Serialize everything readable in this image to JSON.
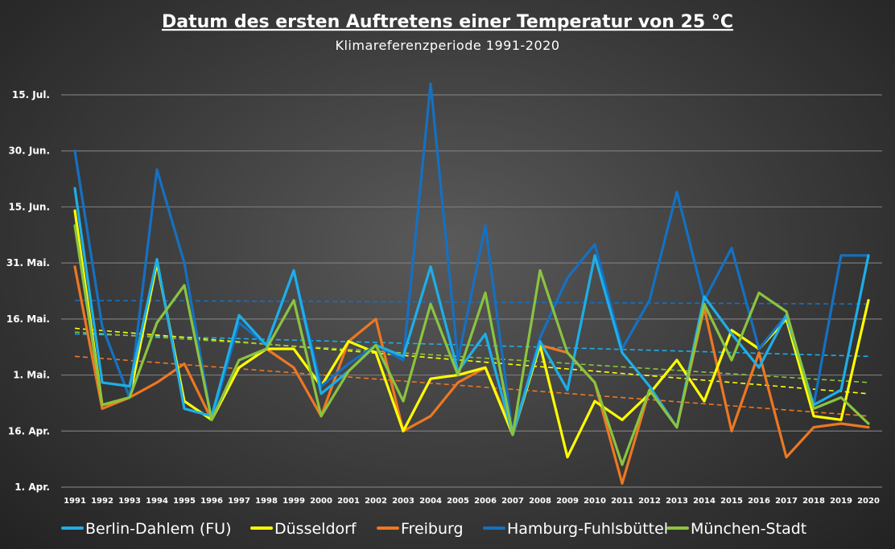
{
  "chart_data": {
    "type": "line",
    "title": "Datum des ersten Auftretens einer Temperatur von 25 °C",
    "subtitle": "Klimareferenzperiode 1991-2020",
    "x": [
      1991,
      1992,
      1993,
      1994,
      1995,
      1996,
      1997,
      1998,
      1999,
      2000,
      2001,
      2002,
      2003,
      2004,
      2005,
      2006,
      2007,
      2008,
      2009,
      2010,
      2011,
      2012,
      2013,
      2014,
      2015,
      2016,
      2017,
      2018,
      2019,
      2020
    ],
    "y_ticks": [
      {
        "label": "1. Apr.",
        "value": 1
      },
      {
        "label": "16. Apr.",
        "value": 16
      },
      {
        "label": "1. Mai.",
        "value": 31
      },
      {
        "label": "16. Mai.",
        "value": 46
      },
      {
        "label": "31. Mai.",
        "value": 61
      },
      {
        "label": "15. Jun.",
        "value": 76
      },
      {
        "label": "30. Jun.",
        "value": 91
      },
      {
        "label": "15. Jul.",
        "value": 106
      }
    ],
    "ylim": [
      -2,
      108
    ],
    "grid": true,
    "legend_position": "bottom",
    "series": [
      {
        "name": "Berlin-Dahlem (FU)",
        "color": "#1eaee8",
        "values": [
          81,
          29,
          28,
          62,
          22,
          20,
          47,
          39,
          59,
          26,
          32,
          39,
          36,
          60,
          32,
          42,
          15,
          40,
          27,
          63,
          37,
          28,
          17,
          52,
          42,
          33,
          47,
          23,
          27,
          63
        ]
      },
      {
        "name": "Düsseldorf",
        "color": "#ffff00",
        "values": [
          75,
          23,
          25,
          61,
          24,
          19,
          33,
          38,
          38,
          28,
          40,
          37,
          16,
          30,
          31,
          33,
          15,
          39,
          9,
          24,
          19,
          26,
          35,
          24,
          43,
          38,
          46,
          20,
          19,
          51
        ]
      },
      {
        "name": "Freiburg",
        "color": "#ee7722",
        "values": [
          60,
          22,
          25,
          29,
          34,
          19,
          33,
          38,
          33,
          20,
          40,
          46,
          16,
          20,
          29,
          33,
          16,
          39,
          37,
          29,
          2,
          27,
          17,
          49,
          16,
          37,
          9,
          17,
          18,
          17
        ]
      },
      {
        "name": "Hamburg-Fuhlsbüttel",
        "color": "#1670c0",
        "values": [
          91,
          44,
          25,
          86,
          61,
          19,
          45,
          39,
          59,
          28,
          34,
          39,
          35,
          109,
          35,
          71,
          15,
          41,
          57,
          66,
          38,
          51,
          80,
          51,
          65,
          38,
          47,
          23,
          63,
          63
        ]
      },
      {
        "name": "München-Stadt",
        "color": "#8ac43f",
        "values": [
          71,
          23,
          25,
          45,
          55,
          19,
          35,
          38,
          51,
          20,
          32,
          39,
          24,
          50,
          31,
          53,
          15,
          59,
          37,
          29,
          7,
          27,
          17,
          50,
          35,
          53,
          48,
          22,
          25,
          18
        ]
      }
    ],
    "trendlines": [
      {
        "series": "Berlin-Dahlem (FU)",
        "color": "#1eaee8",
        "start": 42,
        "end": 36
      },
      {
        "series": "Düsseldorf",
        "color": "#ffff00",
        "start": 43.5,
        "end": 26
      },
      {
        "series": "Freiburg",
        "color": "#ee7722",
        "start": 36,
        "end": 20
      },
      {
        "series": "Hamburg-Fuhlsbüttel",
        "color": "#1670c0",
        "start": 51,
        "end": 50
      },
      {
        "series": "München-Stadt",
        "color": "#8ac43f",
        "start": 42.5,
        "end": 29
      }
    ]
  }
}
